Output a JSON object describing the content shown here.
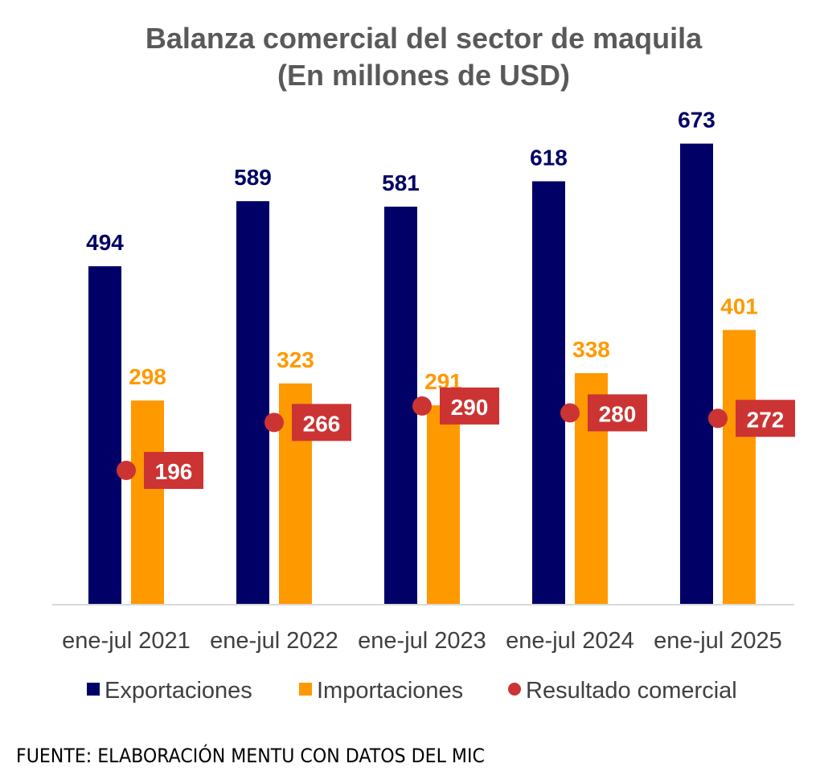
{
  "chart_data": {
    "type": "bar",
    "title": "Balanza comercial del sector de maquila",
    "subtitle": "(En millones de USD)",
    "xlabel": "",
    "ylabel": "",
    "categories": [
      "ene-jul 2021",
      "ene-jul 2022",
      "ene-jul 2023",
      "ene-jul 2024",
      "ene-jul 2025"
    ],
    "series": [
      {
        "name": "Exportaciones",
        "kind": "bar",
        "color": "#000066",
        "values": [
          494,
          589,
          581,
          618,
          673
        ]
      },
      {
        "name": "Importaciones",
        "kind": "bar",
        "color": "#FF9900",
        "values": [
          298,
          323,
          291,
          338,
          401
        ]
      },
      {
        "name": "Resultado comercial",
        "kind": "point",
        "color": "#CC3333",
        "values": [
          196,
          266,
          290,
          280,
          272
        ]
      }
    ],
    "ylim": [
      0,
      700
    ],
    "grid": false,
    "legend_position": "bottom"
  },
  "source_note": "FUENTE: ELABORACIÓN MENTU CON DATOS DEL MIC"
}
